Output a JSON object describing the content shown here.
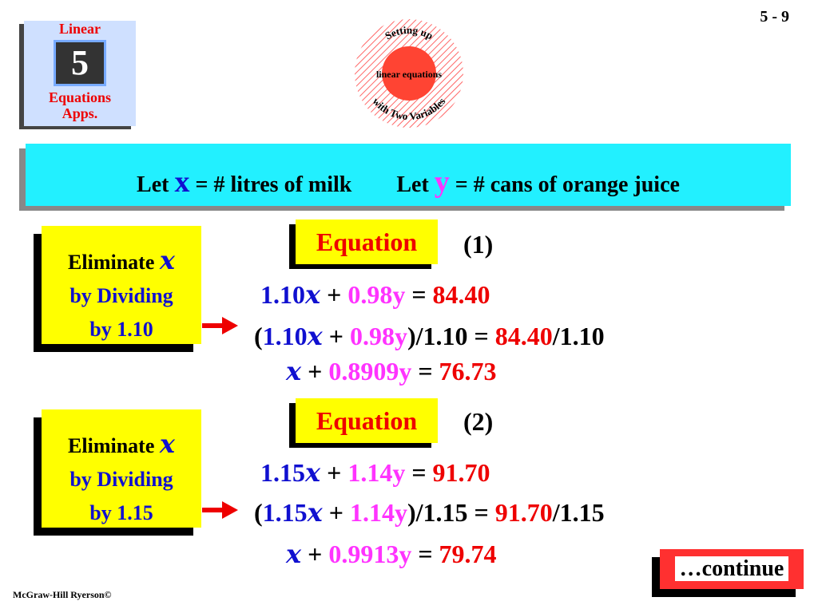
{
  "page_number": "5 - 9",
  "logo": {
    "top": "Linear",
    "number": "5",
    "bottom": [
      "Equations",
      "Apps."
    ]
  },
  "badge": {
    "top": "Setting up",
    "middle": "linear equations",
    "bottom": "with Two Variables"
  },
  "banner": [
    "Let",
    "x",
    "= # litres of milk",
    "Let",
    "y",
    "= # cans of orange juice"
  ],
  "sections": [
    {
      "note": [
        "Eliminate",
        "x",
        "by Dividing",
        "by 1.10"
      ],
      "label": "Equation",
      "number": "(1)",
      "lines": [
        [
          "1.10",
          "x",
          "+",
          "0.98y",
          "=",
          "84.40"
        ],
        [
          "(",
          "1.10",
          "x",
          "+",
          "0.98y",
          ")/1.10 =",
          "84.40",
          "/1.10"
        ],
        [
          "x",
          "+",
          "0.8909y",
          "=",
          "76.73"
        ]
      ]
    },
    {
      "note": [
        "Eliminate",
        "x",
        "by Dividing",
        "by 1.15"
      ],
      "label": "Equation",
      "number": "(2)",
      "lines": [
        [
          "1.15",
          "x",
          "+",
          "1.14y",
          "=",
          "91.70"
        ],
        [
          "(",
          "1.15",
          "x",
          "+",
          "1.14y",
          ")/1.15 =",
          "91.70",
          "/1.15"
        ],
        [
          "x",
          "+",
          "0.9913y",
          "=",
          "79.74"
        ]
      ]
    }
  ],
  "continue": "…continue",
  "footer": "McGraw-Hill Ryerson©"
}
